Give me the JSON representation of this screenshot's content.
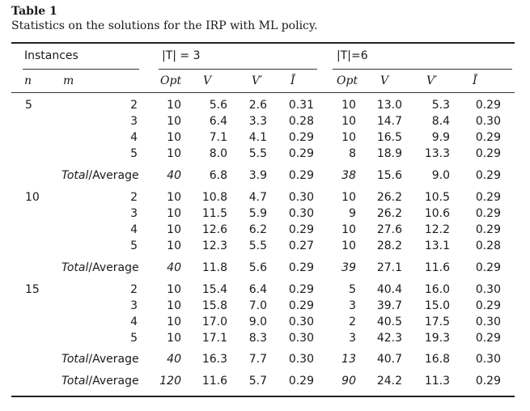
{
  "caption": {
    "label": "Table 1",
    "text": "Statistics on the solutions for the IRP with ML policy."
  },
  "header": {
    "instances": "Instances",
    "group1": "|T| = 3",
    "group2": "|T|=6",
    "n": "n",
    "m": "m",
    "opt": "Opt",
    "v": "V",
    "vprime": "V′",
    "ibar": "Ī"
  },
  "total_label_italic": "Total",
  "total_label_rest": "/Average",
  "groups": [
    {
      "n": "5",
      "rows": [
        {
          "m": "2",
          "opt3": "10",
          "v3": "5.6",
          "vp3": "2.6",
          "i3": "0.31",
          "opt6": "10",
          "v6": "13.0",
          "vp6": "5.3",
          "i6": "0.29"
        },
        {
          "m": "3",
          "opt3": "10",
          "v3": "6.4",
          "vp3": "3.3",
          "i3": "0.28",
          "opt6": "10",
          "v6": "14.7",
          "vp6": "8.4",
          "i6": "0.30"
        },
        {
          "m": "4",
          "opt3": "10",
          "v3": "7.1",
          "vp3": "4.1",
          "i3": "0.29",
          "opt6": "10",
          "v6": "16.5",
          "vp6": "9.9",
          "i6": "0.29"
        },
        {
          "m": "5",
          "opt3": "10",
          "v3": "8.0",
          "vp3": "5.5",
          "i3": "0.29",
          "opt6": "8",
          "v6": "18.9",
          "vp6": "13.3",
          "i6": "0.29"
        }
      ],
      "total": {
        "opt3": "40",
        "v3": "6.8",
        "vp3": "3.9",
        "i3": "0.29",
        "opt6": "38",
        "v6": "15.6",
        "vp6": "9.0",
        "i6": "0.29"
      }
    },
    {
      "n": "10",
      "rows": [
        {
          "m": "2",
          "opt3": "10",
          "v3": "10.8",
          "vp3": "4.7",
          "i3": "0.30",
          "opt6": "10",
          "v6": "26.2",
          "vp6": "10.5",
          "i6": "0.29"
        },
        {
          "m": "3",
          "opt3": "10",
          "v3": "11.5",
          "vp3": "5.9",
          "i3": "0.30",
          "opt6": "9",
          "v6": "26.2",
          "vp6": "10.6",
          "i6": "0.29"
        },
        {
          "m": "4",
          "opt3": "10",
          "v3": "12.6",
          "vp3": "6.2",
          "i3": "0.29",
          "opt6": "10",
          "v6": "27.6",
          "vp6": "12.2",
          "i6": "0.29"
        },
        {
          "m": "5",
          "opt3": "10",
          "v3": "12.3",
          "vp3": "5.5",
          "i3": "0.27",
          "opt6": "10",
          "v6": "28.2",
          "vp6": "13.1",
          "i6": "0.28"
        }
      ],
      "total": {
        "opt3": "40",
        "v3": "11.8",
        "vp3": "5.6",
        "i3": "0.29",
        "opt6": "39",
        "v6": "27.1",
        "vp6": "11.6",
        "i6": "0.29"
      }
    },
    {
      "n": "15",
      "rows": [
        {
          "m": "2",
          "opt3": "10",
          "v3": "15.4",
          "vp3": "6.4",
          "i3": "0.29",
          "opt6": "5",
          "v6": "40.4",
          "vp6": "16.0",
          "i6": "0.30"
        },
        {
          "m": "3",
          "opt3": "10",
          "v3": "15.8",
          "vp3": "7.0",
          "i3": "0.29",
          "opt6": "3",
          "v6": "39.7",
          "vp6": "15.0",
          "i6": "0.29"
        },
        {
          "m": "4",
          "opt3": "10",
          "v3": "17.0",
          "vp3": "9.0",
          "i3": "0.30",
          "opt6": "2",
          "v6": "40.5",
          "vp6": "17.5",
          "i6": "0.30"
        },
        {
          "m": "5",
          "opt3": "10",
          "v3": "17.1",
          "vp3": "8.3",
          "i3": "0.30",
          "opt6": "3",
          "v6": "42.3",
          "vp6": "19.3",
          "i6": "0.29"
        }
      ],
      "total": {
        "opt3": "40",
        "v3": "16.3",
        "vp3": "7.7",
        "i3": "0.30",
        "opt6": "13",
        "v6": "40.7",
        "vp6": "16.8",
        "i6": "0.30"
      }
    }
  ],
  "grand_total": {
    "opt3": "120",
    "v3": "11.6",
    "vp3": "5.7",
    "i3": "0.29",
    "opt6": "90",
    "v6": "24.2",
    "vp6": "11.3",
    "i6": "0.29"
  }
}
